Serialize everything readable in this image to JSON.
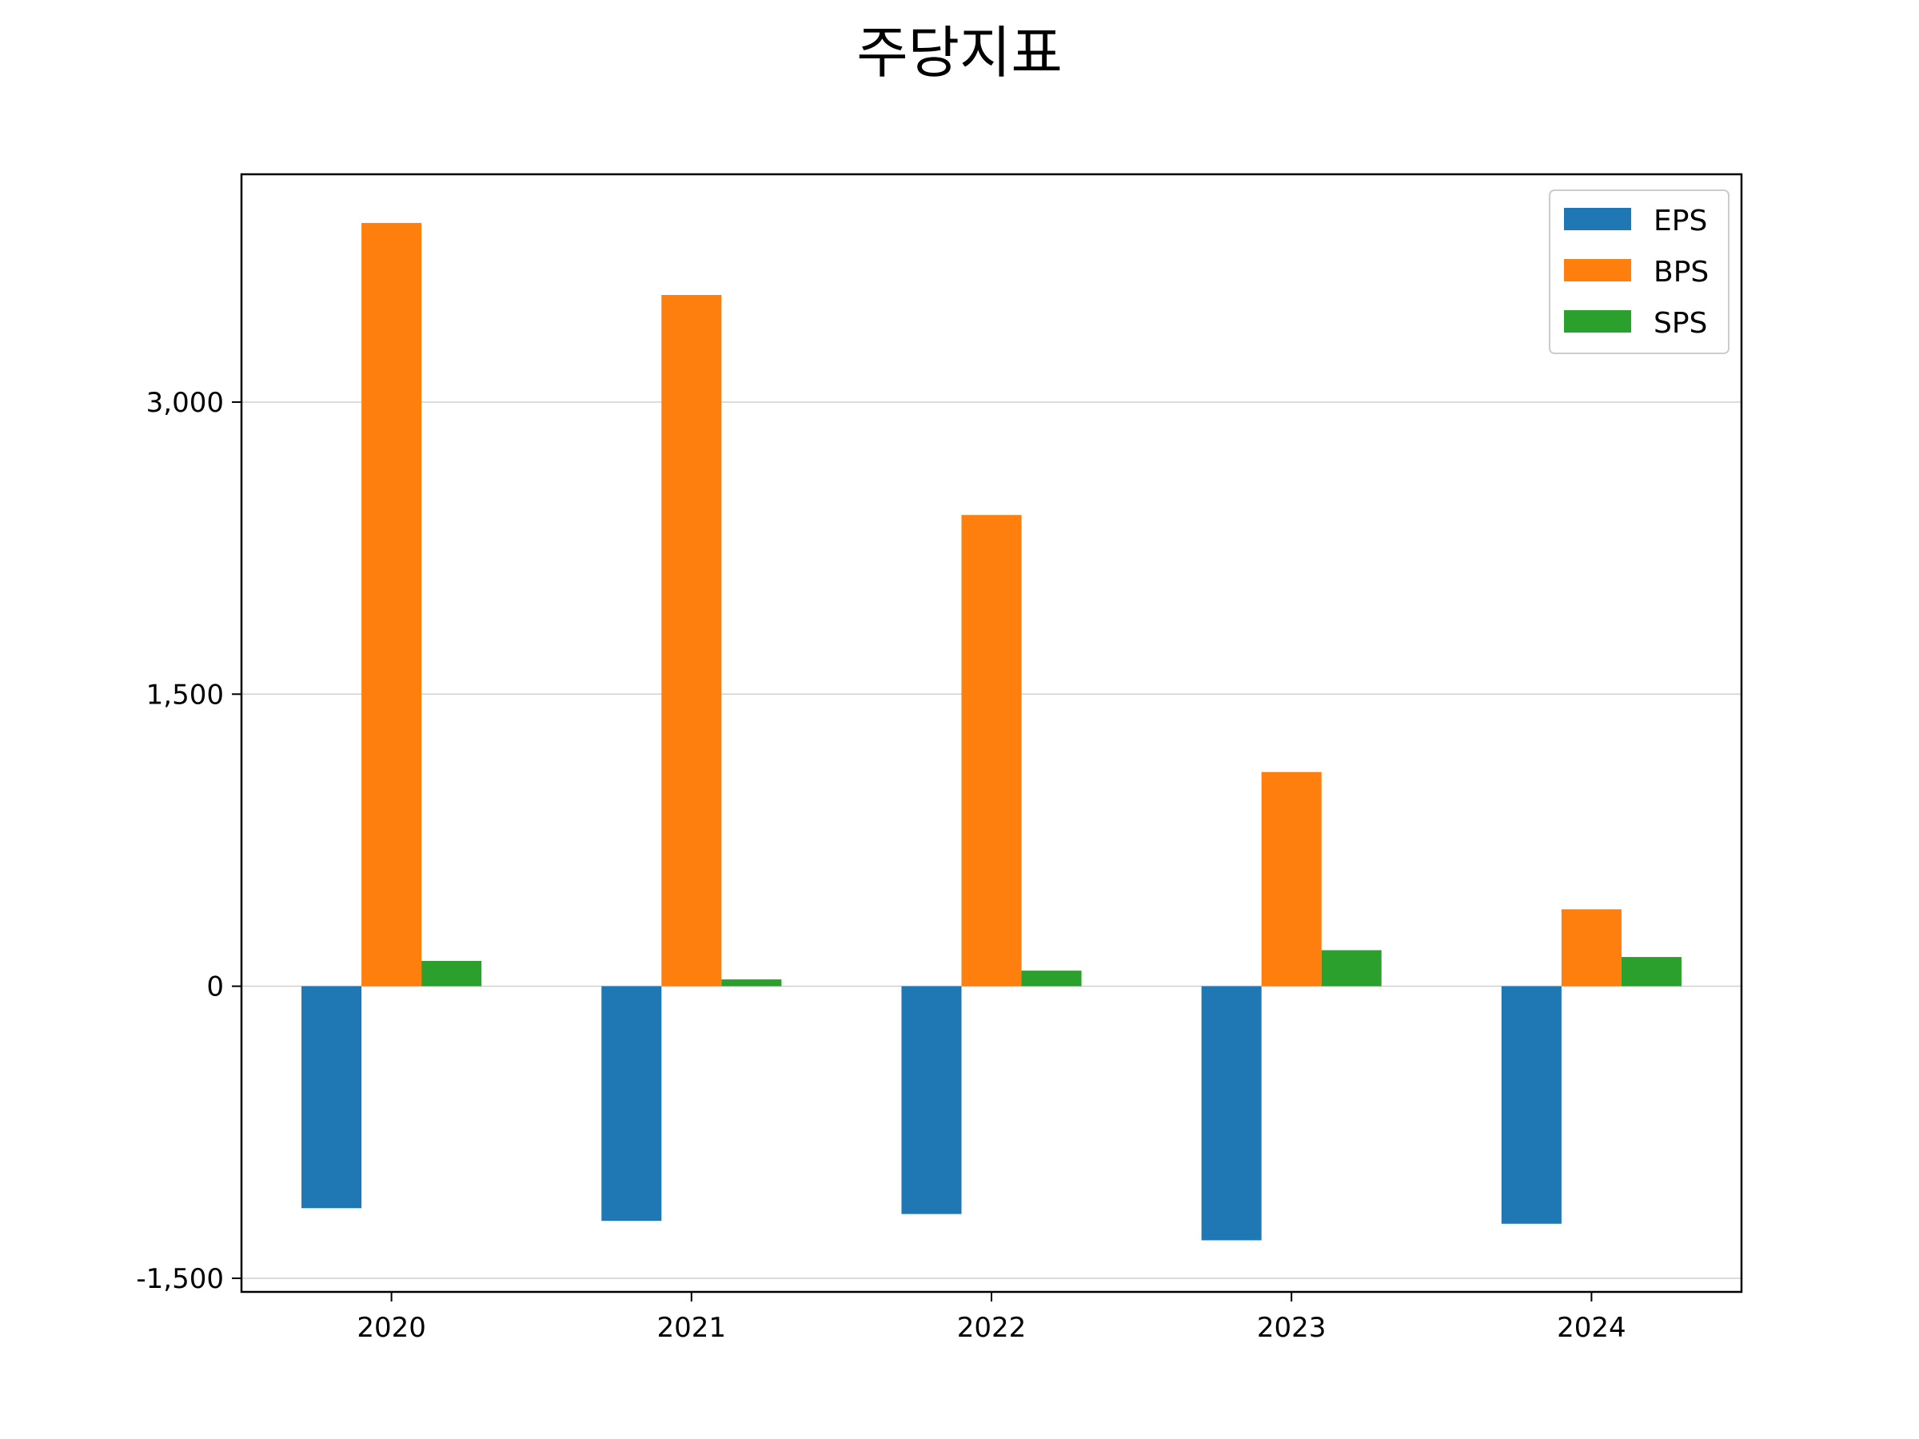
{
  "chart_data": {
    "type": "bar",
    "title": "주당지표",
    "xlabel": "",
    "ylabel": "",
    "categories": [
      "2020",
      "2021",
      "2022",
      "2023",
      "2024"
    ],
    "series": [
      {
        "name": "EPS",
        "color": "#1f77b4",
        "values": [
          -1140,
          -1205,
          -1170,
          -1305,
          -1220
        ]
      },
      {
        "name": "BPS",
        "color": "#ff7f0e",
        "values": [
          3920,
          3550,
          2420,
          1100,
          395
        ]
      },
      {
        "name": "SPS",
        "color": "#2ca02c",
        "values": [
          130,
          35,
          80,
          185,
          150
        ]
      }
    ],
    "ylim": [
      -1570,
      4170
    ],
    "yticks": [
      -1500,
      0,
      1500,
      3000
    ],
    "ytick_labels": [
      "-1,500",
      "0",
      "1,500",
      "3,000"
    ],
    "grid": "y",
    "legend_position": "top-right"
  }
}
